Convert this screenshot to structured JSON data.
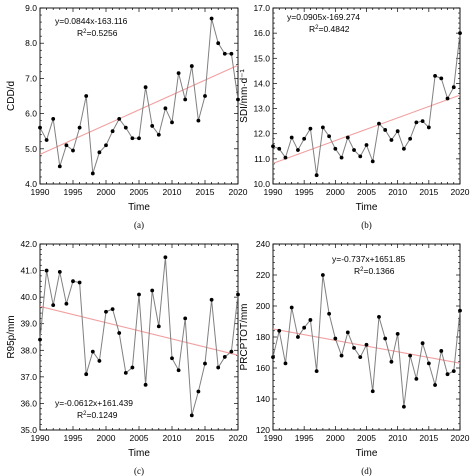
{
  "chart_data": [
    {
      "type": "line",
      "panel_label": "(a)",
      "xlabel": "Time",
      "ylabel": "CDD/d",
      "xlim": [
        1990,
        2020
      ],
      "ylim": [
        4.0,
        9.0
      ],
      "xticks": [
        1990,
        1995,
        2000,
        2005,
        2010,
        2015,
        2020
      ],
      "yticks": [
        "4.0",
        "5.0",
        "6.0",
        "7.0",
        "8.0",
        "9.0"
      ],
      "x": [
        1990,
        1991,
        1992,
        1993,
        1994,
        1995,
        1996,
        1997,
        1998,
        1999,
        2000,
        2001,
        2002,
        2003,
        2004,
        2005,
        2006,
        2007,
        2008,
        2009,
        2010,
        2011,
        2012,
        2013,
        2014,
        2015,
        2016,
        2017,
        2018,
        2019,
        2020
      ],
      "series": [
        {
          "values": [
            5.6,
            5.25,
            5.85,
            4.5,
            5.1,
            4.95,
            5.6,
            6.5,
            4.3,
            4.9,
            5.1,
            5.5,
            5.85,
            5.6,
            5.3,
            5.3,
            6.75,
            5.65,
            5.4,
            6.15,
            5.75,
            7.15,
            6.4,
            7.35,
            5.8,
            6.5,
            8.7,
            8.0,
            7.7,
            7.7,
            6.4
          ]
        }
      ],
      "trend": {
        "slope": 0.0844,
        "intercept": -163.116
      },
      "equation": "y=0.0844x-163.116",
      "r2_prefix": "R",
      "r2_sup": "2",
      "r2_value": "=0.5256",
      "colors": {
        "line": "#808080",
        "trend": "#f2a0a0",
        "marker": "#000000"
      }
    },
    {
      "type": "line",
      "panel_label": "(b)",
      "xlabel": "Time",
      "ylabel": "SDI/mm·d⁻¹",
      "xlim": [
        1990,
        2020
      ],
      "ylim": [
        10.0,
        17.0
      ],
      "xticks": [
        1990,
        1995,
        2000,
        2005,
        2010,
        2015,
        2020
      ],
      "yticks": [
        "10.0",
        "11.0",
        "12.0",
        "13.0",
        "14.0",
        "15.0",
        "16.0",
        "17.0"
      ],
      "x": [
        1990,
        1991,
        1992,
        1993,
        1994,
        1995,
        1996,
        1997,
        1998,
        1999,
        2000,
        2001,
        2002,
        2003,
        2004,
        2005,
        2006,
        2007,
        2008,
        2009,
        2010,
        2011,
        2012,
        2013,
        2014,
        2015,
        2016,
        2017,
        2018,
        2019,
        2020
      ],
      "series": [
        {
          "values": [
            11.5,
            11.4,
            11.05,
            11.85,
            11.35,
            11.8,
            12.2,
            10.35,
            12.25,
            11.9,
            11.4,
            11.05,
            11.85,
            11.35,
            11.1,
            11.55,
            10.9,
            12.4,
            12.15,
            11.75,
            12.1,
            11.4,
            11.8,
            12.45,
            12.5,
            12.25,
            14.3,
            14.2,
            13.4,
            13.85,
            16.0
          ]
        }
      ],
      "trend": {
        "slope": 0.0905,
        "intercept": -169.274
      },
      "equation": "y=0.0905x-169.274",
      "r2_prefix": "R",
      "r2_sup": "2",
      "r2_value": "=0.4842",
      "colors": {
        "line": "#808080",
        "trend": "#f2a0a0",
        "marker": "#000000"
      }
    },
    {
      "type": "line",
      "panel_label": "(c)",
      "xlabel": "Time",
      "ylabel": "R95p/mm",
      "xlim": [
        1990,
        2020
      ],
      "ylim": [
        35.0,
        42.0
      ],
      "xticks": [
        1990,
        1995,
        2000,
        2005,
        2010,
        2015,
        2020
      ],
      "yticks": [
        "35.0",
        "36.0",
        "37.0",
        "38.0",
        "39.0",
        "40.0",
        "41.0",
        "42.0"
      ],
      "x": [
        1990,
        1991,
        1992,
        1993,
        1994,
        1995,
        1996,
        1997,
        1998,
        1999,
        2000,
        2001,
        2002,
        2003,
        2004,
        2005,
        2006,
        2007,
        2008,
        2009,
        2010,
        2011,
        2012,
        2013,
        2014,
        2015,
        2016,
        2017,
        2018,
        2019,
        2020
      ],
      "series": [
        {
          "values": [
            38.4,
            41.0,
            39.7,
            40.95,
            39.75,
            40.6,
            40.55,
            37.1,
            37.95,
            37.6,
            39.45,
            39.55,
            38.65,
            37.15,
            37.35,
            40.1,
            36.7,
            40.25,
            38.9,
            41.5,
            37.7,
            37.25,
            39.2,
            35.55,
            36.45,
            37.5,
            39.9,
            37.35,
            37.75,
            37.95,
            40.1
          ]
        }
      ],
      "trend": {
        "slope": -0.0612,
        "intercept": 161.439
      },
      "equation": "y=-0.0612x+161.439",
      "r2_prefix": "R",
      "r2_sup": "2",
      "r2_value": "=0.1249",
      "colors": {
        "line": "#808080",
        "trend": "#f2a0a0",
        "marker": "#000000"
      }
    },
    {
      "type": "line",
      "panel_label": "(d)",
      "xlabel": "Time",
      "ylabel": "PRCPTOT/mm",
      "xlim": [
        1990,
        2020
      ],
      "ylim": [
        120,
        240
      ],
      "xticks": [
        1990,
        1995,
        2000,
        2005,
        2010,
        2015,
        2020
      ],
      "yticks": [
        "120",
        "140",
        "160",
        "180",
        "200",
        "220",
        "240"
      ],
      "x": [
        1990,
        1991,
        1992,
        1993,
        1994,
        1995,
        1996,
        1997,
        1998,
        1999,
        2000,
        2001,
        2002,
        2003,
        2004,
        2005,
        2006,
        2007,
        2008,
        2009,
        2010,
        2011,
        2012,
        2013,
        2014,
        2015,
        2016,
        2017,
        2018,
        2019,
        2020
      ],
      "series": [
        {
          "values": [
            167,
            184,
            163,
            199,
            180,
            186,
            191,
            158,
            220,
            195,
            179,
            168,
            183,
            173,
            167,
            175,
            145,
            193,
            179,
            164,
            182,
            135,
            168,
            153,
            176,
            163,
            149,
            171,
            156,
            158,
            197
          ]
        }
      ],
      "trend": {
        "slope": -0.737,
        "intercept": 1651.85
      },
      "equation": "y=-0.737x+1651.85",
      "r2_prefix": "R",
      "r2_sup": "2",
      "r2_value": "=0.1366",
      "colors": {
        "line": "#808080",
        "trend": "#f2a0a0",
        "marker": "#000000"
      }
    }
  ]
}
